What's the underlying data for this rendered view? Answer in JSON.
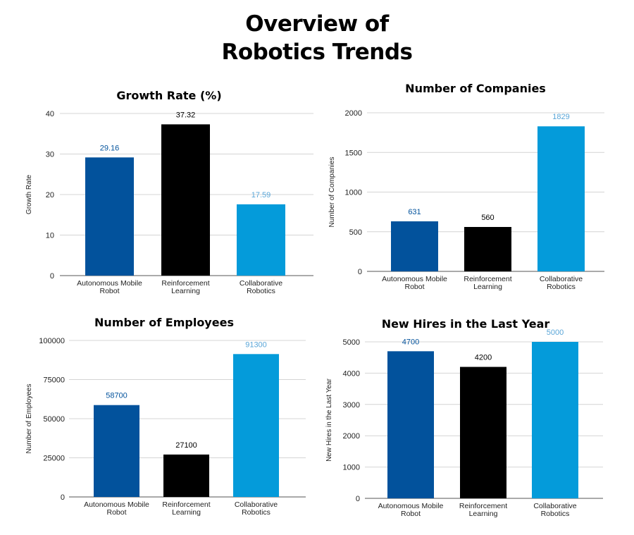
{
  "page": {
    "title_lines": [
      "Overview of",
      "Robotics Trends"
    ]
  },
  "colors": {
    "Autonomous Mobile Robot": "#02529C",
    "Reinforcement Learning": "#000000",
    "Collaborative Robotics": "#049BDA",
    "label_amr": "#02529C",
    "label_rl": "#000000",
    "label_cr": "#5AA6D8"
  },
  "chart_data": [
    {
      "type": "bar",
      "title": "Growth Rate (%)",
      "ylabel": "Growth Rate",
      "xlabel": "",
      "categories": [
        [
          "Autonomous Mobile",
          "Robot"
        ],
        [
          "Reinforcement",
          "Learning"
        ],
        [
          "Collaborative",
          "Robotics"
        ]
      ],
      "values": [
        29.16,
        37.32,
        17.59
      ],
      "data_labels": [
        "29.16",
        "37.32",
        "17.59"
      ],
      "ylim": [
        0,
        40
      ],
      "yticks": [
        0,
        10,
        20,
        30,
        40
      ],
      "grid": true
    },
    {
      "type": "bar",
      "title": "Number of Companies",
      "ylabel": "Number of Companies",
      "xlabel": "",
      "categories": [
        [
          "Autonomous Mobile",
          "Robot"
        ],
        [
          "Reinforcement",
          "Learning"
        ],
        [
          "Collaborative",
          "Robotics"
        ]
      ],
      "values": [
        631,
        560,
        1829
      ],
      "data_labels": [
        "631",
        "560",
        "1829"
      ],
      "ylim": [
        0,
        2000
      ],
      "yticks": [
        0,
        500,
        1000,
        1500,
        2000
      ],
      "grid": true
    },
    {
      "type": "bar",
      "title": "Number of Employees",
      "ylabel": "Number of Employees",
      "xlabel": "",
      "categories": [
        [
          "Autonomous Mobile",
          "Robot"
        ],
        [
          "Reinforcement",
          "Learning"
        ],
        [
          "Collaborative",
          "Robotics"
        ]
      ],
      "values": [
        58700,
        27100,
        91300
      ],
      "data_labels": [
        "58700",
        "27100",
        "91300"
      ],
      "ylim": [
        0,
        100000
      ],
      "yticks": [
        0,
        25000,
        50000,
        75000,
        100000
      ],
      "grid": true
    },
    {
      "type": "bar",
      "title": "New Hires in the Last Year",
      "ylabel": "New Hires in the Last Year",
      "xlabel": "",
      "categories": [
        [
          "Autonomous Mobile",
          "Robot"
        ],
        [
          "Reinforcement",
          "Learning"
        ],
        [
          "Collaborative",
          "Robotics"
        ]
      ],
      "values": [
        4700,
        4200,
        5000
      ],
      "data_labels": [
        "4700",
        "4200",
        "5000"
      ],
      "ylim": [
        0,
        5000
      ],
      "yticks": [
        0,
        1000,
        2000,
        3000,
        4000,
        5000
      ],
      "grid": true
    }
  ]
}
